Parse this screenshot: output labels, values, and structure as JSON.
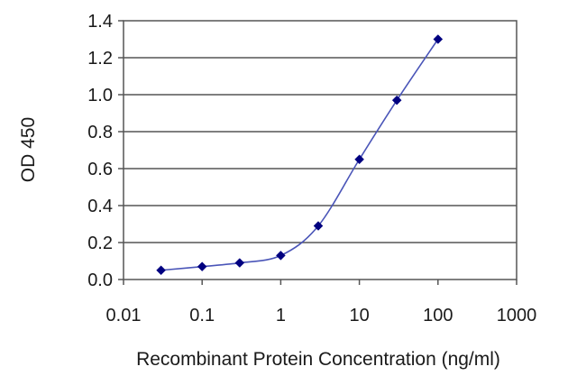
{
  "chart_data": {
    "type": "line",
    "title": "",
    "xlabel": "Recombinant Protein Concentration (ng/ml)",
    "ylabel": "OD 450",
    "x_scale": "log",
    "xlim": [
      0.01,
      1000
    ],
    "ylim": [
      0,
      1.4
    ],
    "x_ticks": [
      "0.01",
      "0.1",
      "1",
      "10",
      "100",
      "1000"
    ],
    "y_ticks": [
      "0.0",
      "0.2",
      "0.4",
      "0.6",
      "0.8",
      "1.0",
      "1.2",
      "1.4"
    ],
    "grid": "horizontal",
    "series": [
      {
        "x": [
          0.03,
          0.1,
          0.3,
          1,
          3,
          10,
          30,
          100
        ],
        "y": [
          0.05,
          0.07,
          0.09,
          0.13,
          0.29,
          0.65,
          0.97,
          1.3
        ],
        "color": "#000080",
        "line_color": "#4a55b8"
      }
    ]
  }
}
